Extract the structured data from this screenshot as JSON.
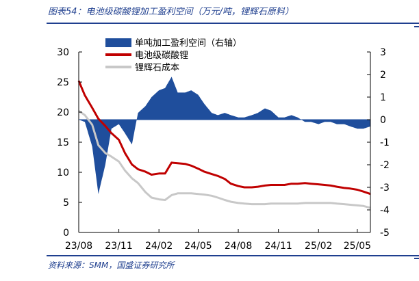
{
  "header": {
    "title": "图表54：电池级碳酸锂加工盈利空间（万元/吨，锂辉石原料）"
  },
  "footer": {
    "source": "资料来源：SMM，国盛证券研究所"
  },
  "colors": {
    "accent": "#1f3f8f",
    "profit": "#1f4e9c",
    "carbonate": "#c00000",
    "spodumene": "#c8c8c8"
  },
  "chart_data": {
    "type": "line",
    "x": [
      "2023-08-01",
      "2023-08-15",
      "2023-09-01",
      "2023-09-15",
      "2023-10-01",
      "2023-10-15",
      "2023-11-01",
      "2023-11-15",
      "2023-12-01",
      "2023-12-15",
      "2024-01-01",
      "2024-01-15",
      "2024-02-01",
      "2024-02-15",
      "2024-03-01",
      "2024-03-15",
      "2024-04-01",
      "2024-04-15",
      "2024-05-01",
      "2024-05-15",
      "2024-06-01",
      "2024-06-15",
      "2024-07-01",
      "2024-07-15",
      "2024-08-01",
      "2024-08-15",
      "2024-09-01",
      "2024-09-15",
      "2024-10-01",
      "2024-10-15",
      "2024-11-01",
      "2024-11-15",
      "2024-12-01",
      "2024-12-15",
      "2025-01-01",
      "2025-01-15",
      "2025-02-01",
      "2025-02-15",
      "2025-03-01",
      "2025-03-15",
      "2025-04-01",
      "2025-04-15",
      "2025-05-01",
      "2025-05-15",
      "2025-05-31"
    ],
    "series": [
      {
        "name": "单吨加工盈利空间（右轴）",
        "type": "area",
        "axis": "right",
        "values": [
          0,
          -0.1,
          -1.2,
          -3.3,
          -2.0,
          -0.4,
          -0.2,
          -0.6,
          -1.1,
          0.3,
          0.6,
          1.0,
          1.3,
          1.4,
          1.9,
          1.2,
          1.2,
          1.3,
          1.1,
          0.7,
          0.3,
          0.2,
          0.3,
          0.2,
          0.1,
          0.1,
          0.2,
          0.3,
          0.5,
          0.4,
          0.1,
          0.1,
          0.2,
          0.1,
          -0.1,
          -0.1,
          -0.2,
          -0.1,
          -0.1,
          -0.2,
          -0.2,
          -0.3,
          -0.4,
          -0.4,
          -0.3
        ]
      },
      {
        "name": "电池级碳酸锂",
        "type": "line",
        "axis": "left",
        "values": [
          25.2,
          22.8,
          20.7,
          18.9,
          17.7,
          16.5,
          15.4,
          13.2,
          11.3,
          10.5,
          10.1,
          9.6,
          9.8,
          9.8,
          11.6,
          11.5,
          11.4,
          11.1,
          10.6,
          10.1,
          9.7,
          9.4,
          8.9,
          8.1,
          7.7,
          7.5,
          7.5,
          7.6,
          7.8,
          7.9,
          7.9,
          7.9,
          8.1,
          8.1,
          8.2,
          8.1,
          8.0,
          7.9,
          7.8,
          7.6,
          7.4,
          7.3,
          7.1,
          6.8,
          6.4
        ]
      },
      {
        "name": "锂辉石成本",
        "type": "line",
        "axis": "left",
        "values": [
          20.2,
          19.5,
          17.9,
          14.5,
          13.2,
          12.6,
          11.8,
          10.3,
          9.0,
          8.2,
          6.7,
          5.8,
          5.5,
          5.4,
          6.2,
          6.5,
          6.5,
          6.5,
          6.4,
          6.3,
          6.1,
          5.8,
          5.4,
          5.1,
          4.9,
          4.8,
          4.7,
          4.7,
          4.7,
          4.8,
          4.8,
          4.8,
          4.8,
          4.8,
          4.9,
          4.9,
          4.9,
          4.9,
          4.9,
          4.8,
          4.7,
          4.6,
          4.5,
          4.4,
          4.1
        ]
      }
    ],
    "x_ticks": [
      "23/08",
      "23/11",
      "24/02",
      "24/05",
      "24/08",
      "24/11",
      "25/02",
      "25/05"
    ],
    "y_left": {
      "ticks": [
        "0",
        "5",
        "10",
        "15",
        "20",
        "25",
        "30"
      ],
      "ylim": [
        0,
        30
      ]
    },
    "y_right": {
      "ticks": [
        "-5",
        "-4",
        "-3",
        "-2",
        "-1",
        "0",
        "1",
        "2",
        "3"
      ],
      "ylim": [
        -5,
        3
      ]
    },
    "legend_position": "top-left",
    "grid": false
  }
}
